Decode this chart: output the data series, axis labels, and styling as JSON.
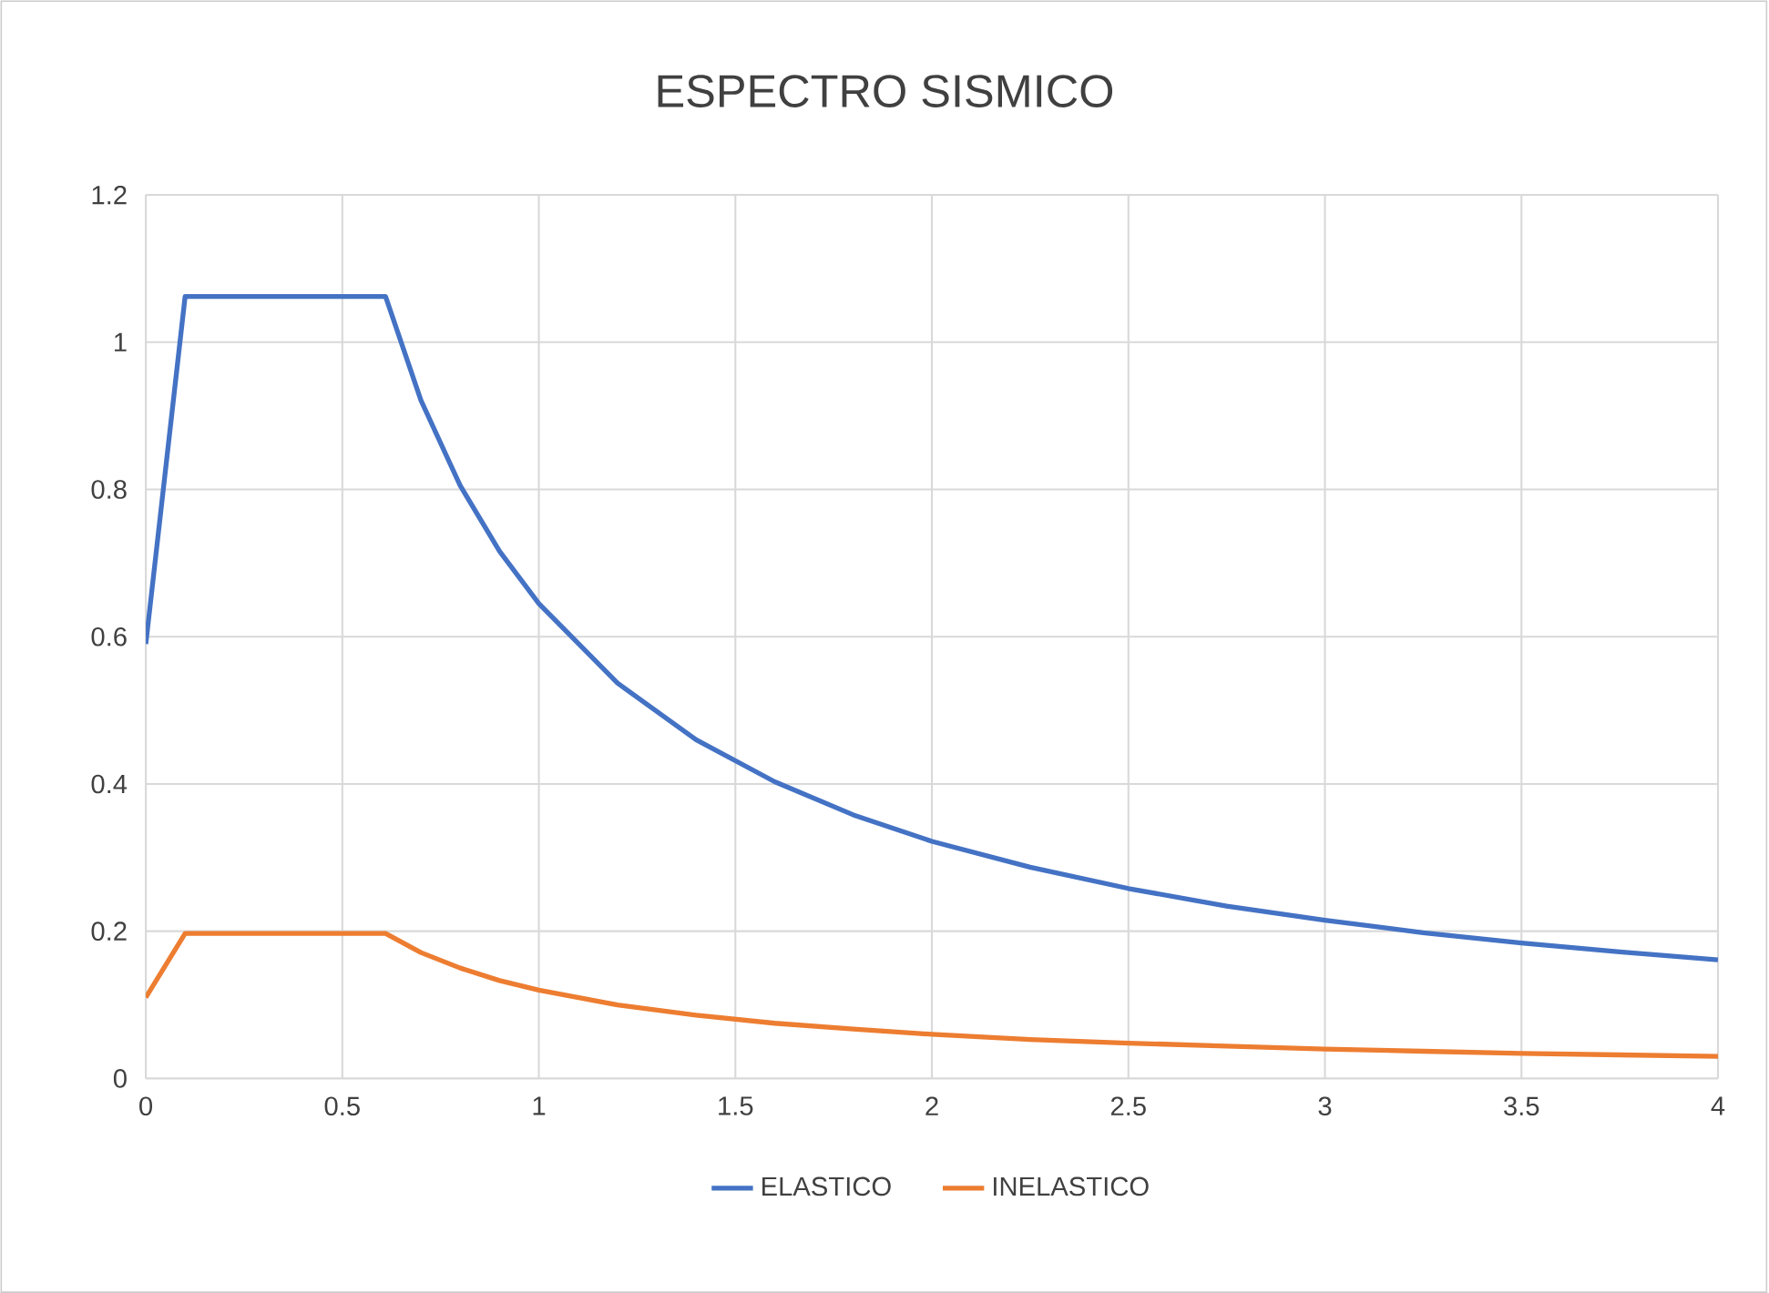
{
  "chart_data": {
    "type": "line",
    "title": "ESPECTRO SISMICO",
    "series": [
      {
        "name": "ELASTICO",
        "color": "#4472c4",
        "x": [
          0,
          0.1,
          0.61,
          0.7,
          0.8,
          0.9,
          1.0,
          1.2,
          1.4,
          1.6,
          1.8,
          2.0,
          2.25,
          2.5,
          2.75,
          3.0,
          3.25,
          3.5,
          3.75,
          4.0
        ],
        "values": [
          0.59,
          1.062,
          1.062,
          0.921,
          0.805,
          0.716,
          0.645,
          0.537,
          0.46,
          0.403,
          0.358,
          0.322,
          0.287,
          0.258,
          0.234,
          0.215,
          0.198,
          0.184,
          0.172,
          0.161
        ]
      },
      {
        "name": "INELASTICO",
        "color": "#ed7d31",
        "x": [
          0,
          0.1,
          0.61,
          0.7,
          0.8,
          0.9,
          1.0,
          1.2,
          1.4,
          1.6,
          1.8,
          2.0,
          2.25,
          2.5,
          2.75,
          3.0,
          3.25,
          3.5,
          3.75,
          4.0
        ],
        "values": [
          0.11,
          0.197,
          0.197,
          0.171,
          0.15,
          0.133,
          0.12,
          0.1,
          0.086,
          0.075,
          0.067,
          0.06,
          0.053,
          0.048,
          0.044,
          0.04,
          0.037,
          0.034,
          0.032,
          0.03
        ]
      }
    ],
    "xlim": [
      0,
      4
    ],
    "xticks": [
      0,
      0.5,
      1,
      1.5,
      2,
      2.5,
      3,
      3.5,
      4
    ],
    "ylim": [
      0,
      1.2
    ],
    "yticks": [
      0,
      0.2,
      0.4,
      0.6,
      0.8,
      1,
      1.2
    ],
    "grid": true,
    "legend": "bottom",
    "marker": "none",
    "line_style": "solid"
  }
}
